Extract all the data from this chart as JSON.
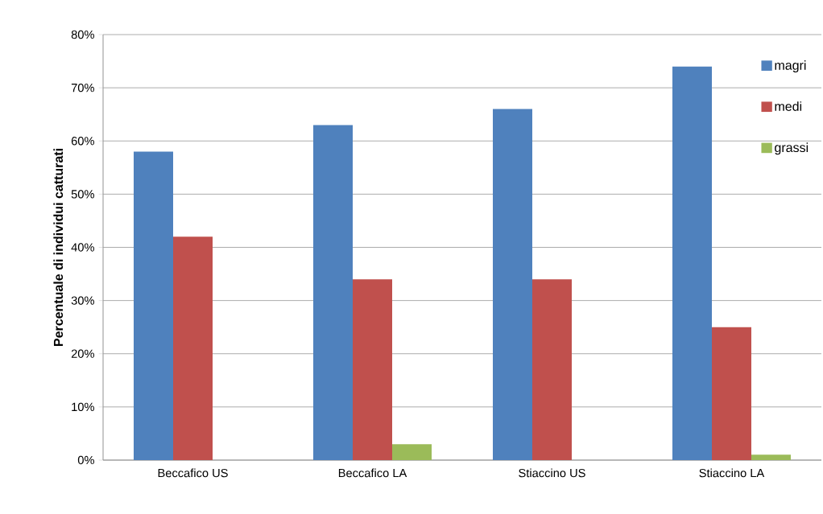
{
  "chart_data": {
    "type": "bar",
    "ylabel": "Percentuale di individui catturati",
    "categories": [
      "Beccafico US",
      "Beccafico LA",
      "Stiaccino US",
      "Stiaccino LA"
    ],
    "series": [
      {
        "name": "magri",
        "color": "#4f81bd",
        "values": [
          58,
          63,
          66,
          74
        ]
      },
      {
        "name": "medi",
        "color": "#c0504d",
        "values": [
          42,
          34,
          34,
          25
        ]
      },
      {
        "name": "grassi",
        "color": "#9bbb59",
        "values": [
          0,
          3,
          0,
          1
        ]
      }
    ],
    "ylim": [
      0,
      80
    ],
    "yticks": [
      {
        "value": 0,
        "label": "0%"
      },
      {
        "value": 10,
        "label": "10%"
      },
      {
        "value": 20,
        "label": "20%"
      },
      {
        "value": 30,
        "label": "30%"
      },
      {
        "value": 40,
        "label": "40%"
      },
      {
        "value": 50,
        "label": "50%"
      },
      {
        "value": 60,
        "label": "60%"
      },
      {
        "value": 70,
        "label": "70%"
      },
      {
        "value": 80,
        "label": "80%"
      }
    ],
    "grid": "y",
    "legend": "top right"
  }
}
